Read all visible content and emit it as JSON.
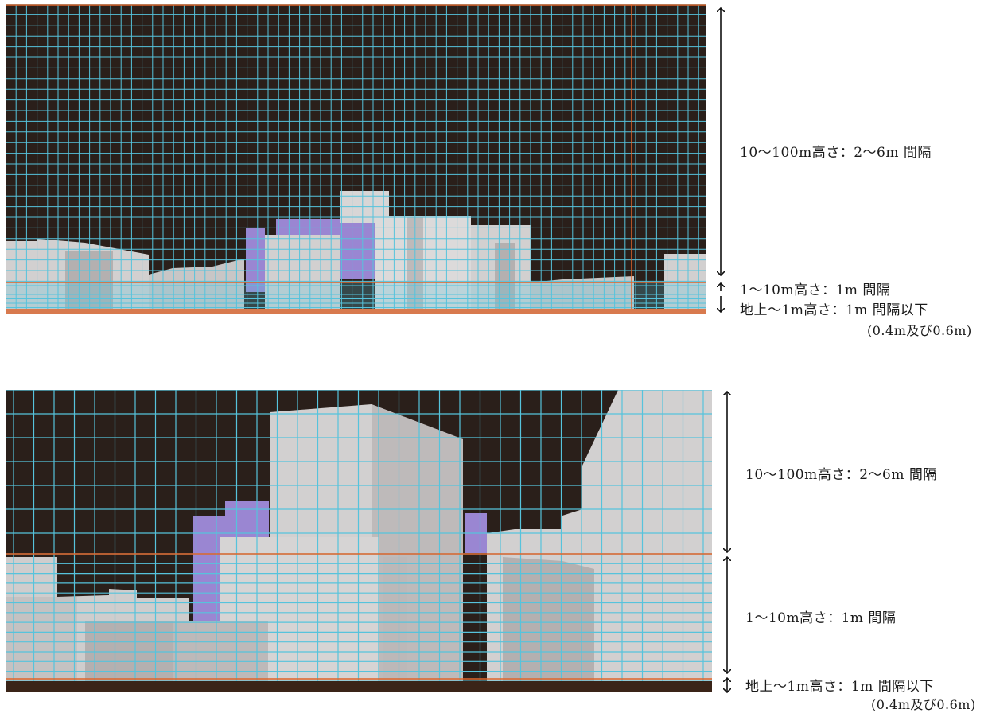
{
  "top_panel": {
    "labels": {
      "upper": "10～100m高さ：2～6m 間隔",
      "middle": "1～10m高さ：1m 間隔",
      "lower": "地上～1m高さ：1m 間隔以下",
      "lower_note": "(0.4m及び0.6m)"
    }
  },
  "bottom_panel": {
    "labels": {
      "upper": "10～100m高さ：2～6m 間隔",
      "middle": "1～10m高さ：1m 間隔",
      "lower": "地上～1m高さ：1m 間隔以下",
      "lower_note": "(0.4m及び0.6m)"
    }
  },
  "colors": {
    "sky": "#2a1f1a",
    "grid": "#56c3dc",
    "boundary": "#e0652a",
    "building": "#d2d0d0",
    "building_shadow": "#b4b0b0",
    "highlight_building": "#9a86d2",
    "ground": "#d87a4e"
  }
}
